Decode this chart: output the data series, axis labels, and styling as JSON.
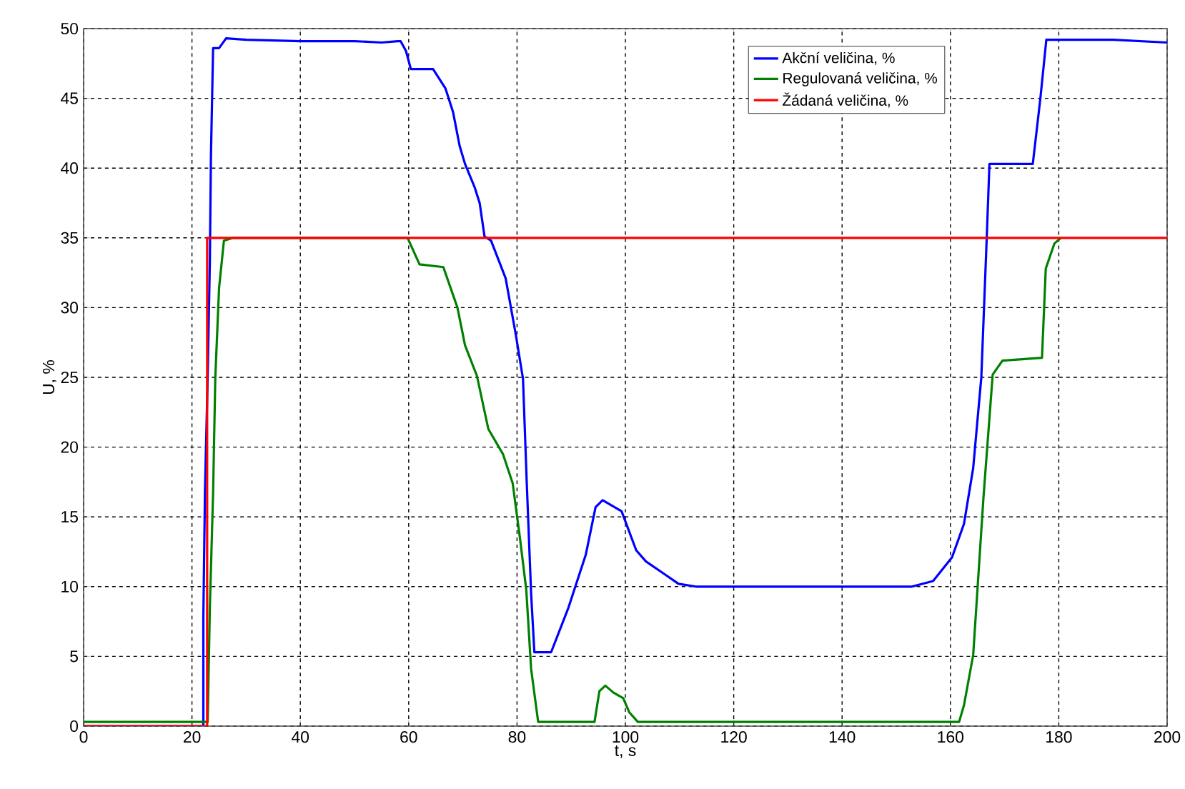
{
  "chart_data": {
    "type": "line",
    "xlabel": "t, s",
    "ylabel": "U, %",
    "xlim": [
      0,
      200
    ],
    "ylim": [
      0,
      50
    ],
    "xticks": [
      0,
      20,
      40,
      60,
      80,
      100,
      120,
      140,
      160,
      180,
      200
    ],
    "yticks": [
      0,
      5,
      10,
      15,
      20,
      25,
      30,
      35,
      40,
      45,
      50
    ],
    "grid": true,
    "legend": "top right",
    "line_style": "solid",
    "series": [
      {
        "name": "Akční veličina, %",
        "color": "#0000ff",
        "x": [
          0,
          22.1,
          22.1,
          22.4,
          22.9,
          23.3,
          23.5,
          23.9,
          25,
          26.3,
          30,
          40,
          50,
          55,
          58,
          58.5,
          59.5,
          60.4,
          64.5,
          66.8,
          68.2,
          69.4,
          70.4,
          72.2,
          73.1,
          74,
          75.2,
          77.9,
          79.8,
          81.1,
          81.8,
          82.6,
          83.2,
          86.3,
          89.5,
          92.7,
          94.5,
          95.8,
          99.3,
          102,
          103.8,
          107.2,
          109.8,
          113,
          152.9,
          156.8,
          160.3,
          162.5,
          164.2,
          165.7,
          166.4,
          166.7,
          167.2,
          175.2,
          176.6,
          177.7,
          178.3,
          190,
          200
        ],
        "values": [
          0,
          0,
          7.8,
          16.9,
          25,
          33.3,
          40.8,
          48.6,
          48.6,
          49.3,
          49.2,
          49.1,
          49.1,
          49,
          49.1,
          49.1,
          48.4,
          47.1,
          47.1,
          45.7,
          44,
          41.6,
          40.3,
          38.6,
          37.5,
          35.1,
          34.8,
          32.1,
          28,
          24.9,
          17.4,
          9.5,
          5.3,
          5.3,
          8.5,
          12.3,
          15.7,
          16.2,
          15.4,
          12.6,
          11.8,
          10.9,
          10.2,
          10,
          10,
          10.4,
          12.1,
          14.5,
          18.5,
          25,
          32,
          35,
          40.3,
          40.3,
          45,
          49.2,
          49.2,
          49.2,
          49
        ]
      },
      {
        "name": "Regulovaná veličina, %",
        "color": "#008000",
        "x": [
          0,
          22.9,
          23.3,
          23.9,
          24.3,
          25,
          25.9,
          27.6,
          59,
          59.8,
          62,
          66.4,
          69,
          70.4,
          72.6,
          74.7,
          77.4,
          79.2,
          80.5,
          81.7,
          82.6,
          83.9,
          94.3,
          95.2,
          96.3,
          97.8,
          99.6,
          100.7,
          102.3,
          161.6,
          162.5,
          164.2,
          166.1,
          167.8,
          169.6,
          176.9,
          177.6,
          179.2,
          180.4
        ],
        "values": [
          0.3,
          0.3,
          8.5,
          16.7,
          24.9,
          31.4,
          34.8,
          35,
          35,
          35,
          33.1,
          32.9,
          30,
          27.3,
          25.1,
          21.3,
          19.5,
          17.4,
          13.6,
          9.8,
          4.1,
          0.3,
          0.3,
          2.5,
          2.9,
          2.4,
          2,
          1,
          0.3,
          0.3,
          1.5,
          5.1,
          16.4,
          25.2,
          26.2,
          26.4,
          32.8,
          34.6,
          35
        ]
      },
      {
        "name": "Žádaná veličina, %",
        "color": "#ff0000",
        "x": [
          0,
          22.8,
          22.8,
          200
        ],
        "values": [
          0,
          0,
          35,
          35
        ]
      }
    ]
  }
}
